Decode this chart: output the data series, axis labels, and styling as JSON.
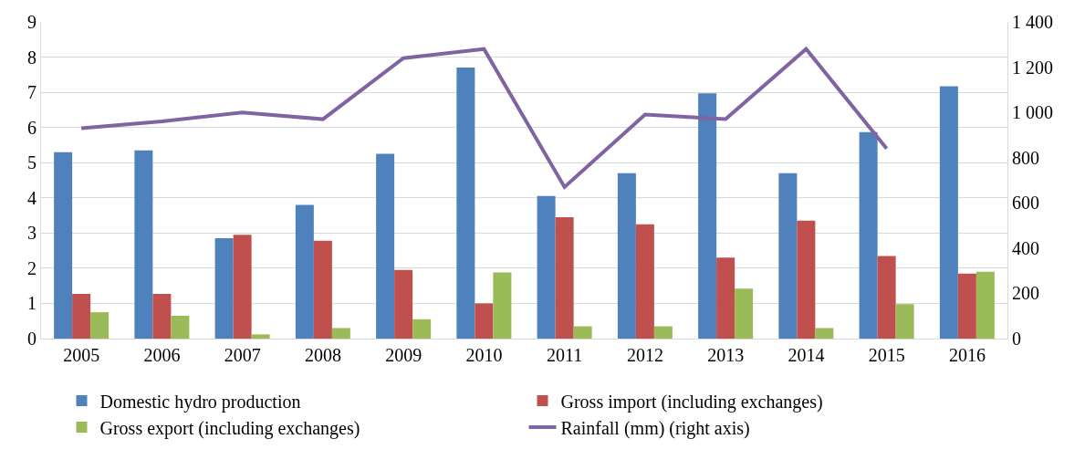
{
  "chart_data": {
    "type": "bar",
    "categories": [
      "2005",
      "2006",
      "2007",
      "2008",
      "2009",
      "2010",
      "2011",
      "2012",
      "2013",
      "2014",
      "2015",
      "2016"
    ],
    "series": [
      {
        "name": "Domestic hydro production",
        "color": "#4f81bd",
        "values": [
          5.3,
          5.35,
          2.85,
          3.8,
          5.25,
          7.7,
          4.05,
          4.7,
          6.97,
          4.7,
          5.87,
          7.17
        ]
      },
      {
        "name": "Gross import (including exchanges)",
        "color": "#c0504d",
        "values": [
          1.27,
          1.27,
          2.95,
          2.78,
          1.95,
          1.0,
          3.45,
          3.25,
          2.3,
          3.35,
          2.35,
          1.85
        ]
      },
      {
        "name": "Gross export (including exchanges)",
        "color": "#9bbb59",
        "values": [
          0.75,
          0.65,
          0.12,
          0.3,
          0.55,
          1.88,
          0.35,
          0.35,
          1.42,
          0.3,
          0.98,
          1.9
        ]
      },
      {
        "name": "Rainfall (mm) (right axis)",
        "type": "line",
        "axis": "y2",
        "color": "#8064a2",
        "values": [
          930,
          960,
          1000,
          970,
          1240,
          1280,
          670,
          990,
          970,
          1280,
          840,
          null
        ]
      }
    ],
    "ylim": [
      0,
      9
    ],
    "yticks": [
      0,
      1,
      2,
      3,
      4,
      5,
      6,
      7,
      8,
      9
    ],
    "y2lim": [
      0,
      1400
    ],
    "y2ticks": [
      0,
      {
        "value": 200,
        "label": "200"
      },
      {
        "value": 400,
        "label": "400"
      },
      {
        "value": 600,
        "label": "600"
      },
      {
        "value": 800,
        "label": "800"
      },
      {
        "value": 1000,
        "label": "1 000"
      },
      {
        "value": 1200,
        "label": "1 200"
      },
      {
        "value": 1400,
        "label": "1 400"
      }
    ],
    "grid": "y",
    "legend": "bottom"
  }
}
